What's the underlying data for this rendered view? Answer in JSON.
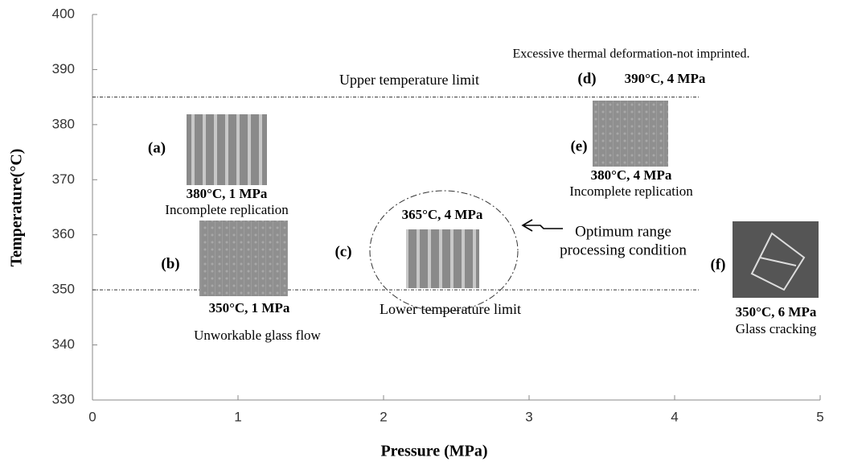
{
  "chart_data": {
    "type": "annotated",
    "x_label": "Pressure (MPa)",
    "y_label": "Temperature(°C)",
    "xlim": [
      0,
      5
    ],
    "xticks": [
      0,
      1,
      2,
      3,
      4,
      5
    ],
    "ylim": [
      330,
      400
    ],
    "yticks": [
      330,
      340,
      350,
      360,
      370,
      380,
      390,
      400
    ],
    "reference_lines": [
      {
        "value": 385,
        "label": "Upper temperature limit"
      },
      {
        "value": 350,
        "label": "Lower temperature limit"
      }
    ],
    "annotations": [
      {
        "tag": "(a)",
        "condition": "380°C, 1 MPa",
        "note": "Incomplete replication"
      },
      {
        "tag": "(b)",
        "condition": "350°C, 1 MPa",
        "note": "Unworkable glass flow"
      },
      {
        "tag": "(c)",
        "condition": "365°C, 4 MPa"
      },
      {
        "tag": "(d)",
        "condition": "390°C, 4 MPa",
        "note": "Excessive thermal deformation-not imprinted."
      },
      {
        "tag": "(e)",
        "condition": "380°C, 4 MPa",
        "note": "Incomplete replication"
      },
      {
        "tag": "(f)",
        "condition": "350°C, 6 MPa",
        "note": "Glass cracking"
      }
    ],
    "optimum_label": [
      "Optimum range",
      "processing condition"
    ]
  }
}
